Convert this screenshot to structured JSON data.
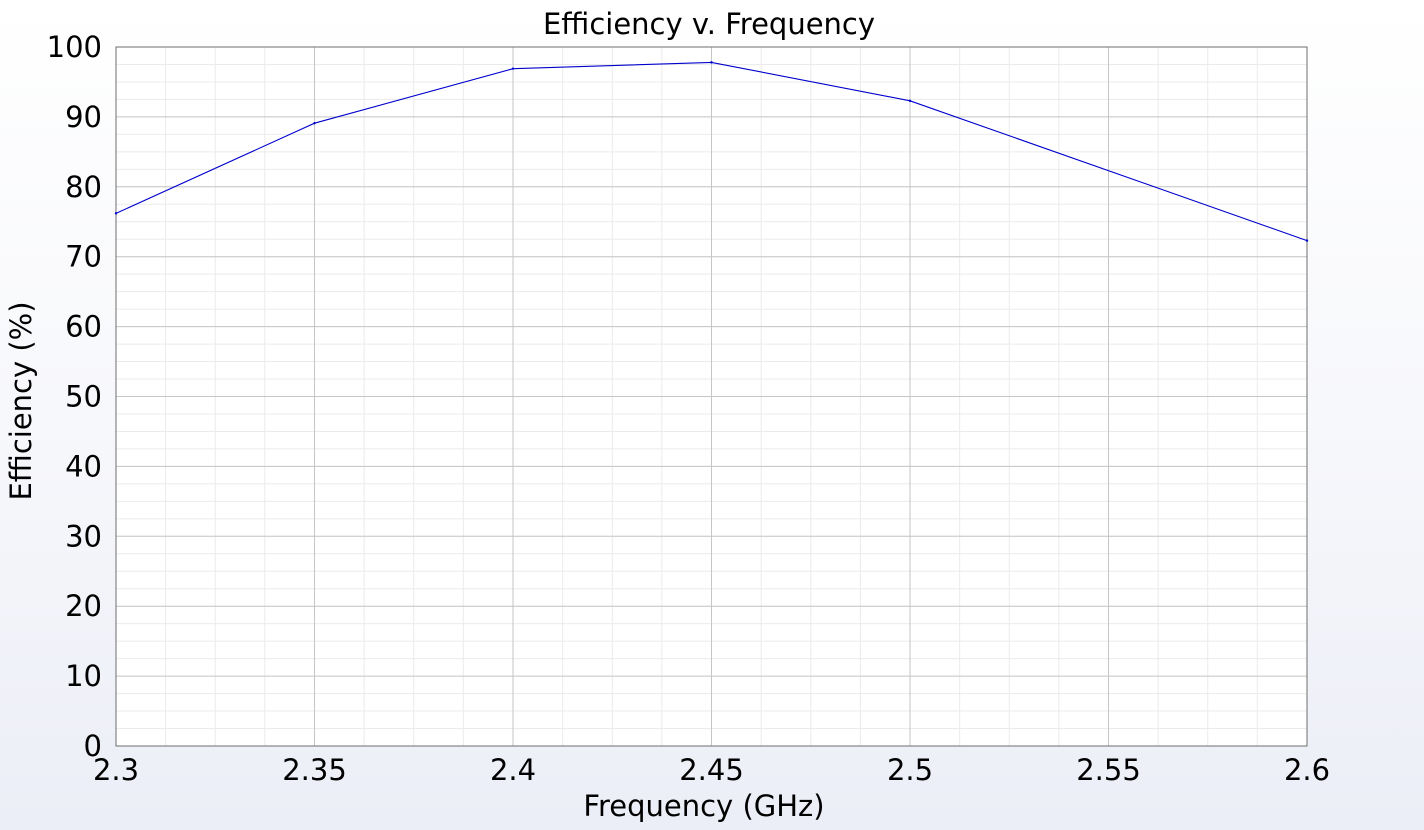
{
  "chart_data": {
    "type": "line",
    "title": "Efficiency v. Frequency",
    "xlabel": "Frequency (GHz)",
    "ylabel": "Efficiency (%)",
    "xlim": [
      2.3,
      2.6
    ],
    "ylim": [
      0,
      100
    ],
    "x_ticks": [
      "2.3",
      "2.35",
      "2.4",
      "2.45",
      "2.5",
      "2.55",
      "2.6"
    ],
    "y_ticks": [
      "0",
      "10",
      "20",
      "30",
      "40",
      "50",
      "60",
      "70",
      "80",
      "90",
      "100"
    ],
    "grid": true,
    "x": [
      2.3,
      2.35,
      2.4,
      2.45,
      2.5,
      2.6
    ],
    "series": [
      {
        "values": [
          76.2,
          89.1,
          96.9,
          97.8,
          92.3,
          72.3
        ],
        "color": "#0000cc"
      }
    ]
  }
}
